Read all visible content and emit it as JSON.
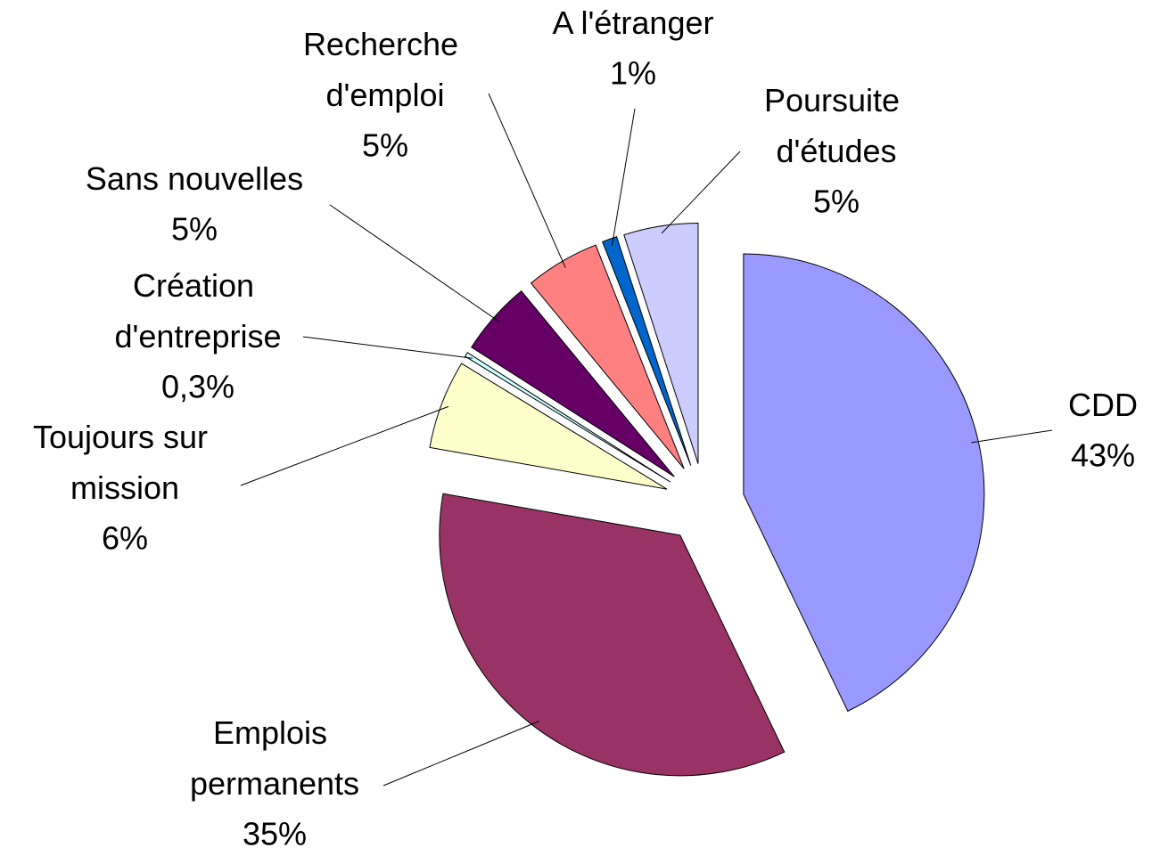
{
  "chart_data": {
    "type": "pie",
    "categories": [
      "CDD",
      "Emplois permanents",
      "Toujours sur mission",
      "Création d'entreprise",
      "Sans nouvelles",
      "Recherche d'emploi",
      "A l'étranger",
      "Poursuite d'études"
    ],
    "values": [
      43,
      35,
      6,
      0.3,
      5,
      5,
      1,
      5
    ],
    "value_labels": [
      "43%",
      "35%",
      "6%",
      "0,3%",
      "5%",
      "5%",
      "1%",
      "5%"
    ],
    "colors": [
      "#9999ff",
      "#993366",
      "#ffffcc",
      "#ccffff",
      "#660066",
      "#ff8080",
      "#0066cc",
      "#ccccff"
    ]
  }
}
